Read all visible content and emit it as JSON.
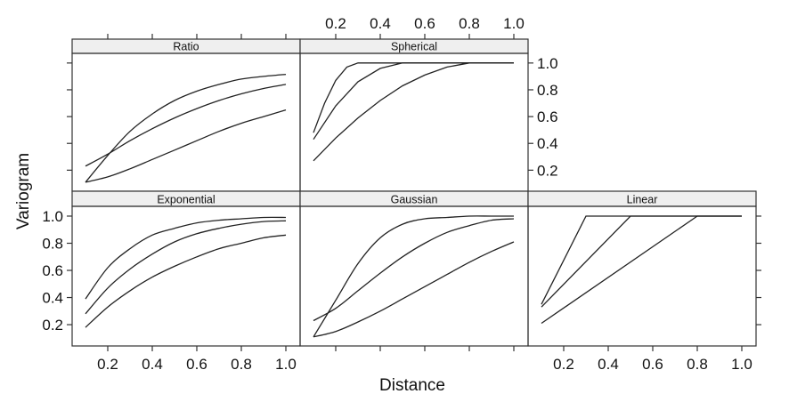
{
  "chart_data": {
    "type": "line",
    "xlabel": "Distance",
    "ylabel": "Variogram",
    "xlim": [
      0.04,
      1.064
    ],
    "ylim": [
      0.043,
      1.072
    ],
    "x_ticks": [
      "0.2",
      "0.4",
      "0.6",
      "0.8",
      "1.0"
    ],
    "y_ticks": [
      "0.2",
      "0.4",
      "0.6",
      "0.8",
      "1.0"
    ],
    "line_color": "#222222",
    "strip_color": "#efefef",
    "panels": [
      {
        "title": "Ratio",
        "row": 0,
        "col": 0,
        "smooth": true,
        "series": [
          {
            "x": [
              0.1,
              0.2,
              0.3,
              0.4,
              0.5,
              0.6,
              0.7,
              0.8,
              0.9,
              1.0
            ],
            "y": [
              0.11,
              0.31,
              0.49,
              0.62,
              0.72,
              0.79,
              0.84,
              0.88,
              0.9,
              0.915
            ]
          },
          {
            "x": [
              0.1,
              0.2,
              0.3,
              0.4,
              0.5,
              0.6,
              0.7,
              0.8,
              0.9,
              1.0
            ],
            "y": [
              0.23,
              0.32,
              0.42,
              0.51,
              0.59,
              0.66,
              0.72,
              0.77,
              0.81,
              0.84
            ]
          },
          {
            "x": [
              0.1,
              0.2,
              0.3,
              0.4,
              0.5,
              0.6,
              0.7,
              0.8,
              0.9,
              1.0
            ],
            "y": [
              0.11,
              0.15,
              0.21,
              0.28,
              0.35,
              0.42,
              0.49,
              0.55,
              0.6,
              0.65
            ]
          }
        ]
      },
      {
        "title": "Spherical",
        "row": 0,
        "col": 1,
        "smooth": false,
        "series": [
          {
            "x": [
              0.1,
              0.15,
              0.2,
              0.25,
              0.3,
              1.0
            ],
            "y": [
              0.48,
              0.7,
              0.87,
              0.97,
              1.0,
              1.0
            ]
          },
          {
            "x": [
              0.1,
              0.2,
              0.3,
              0.4,
              0.5,
              1.0
            ],
            "y": [
              0.43,
              0.68,
              0.86,
              0.96,
              1.0,
              1.0
            ]
          },
          {
            "x": [
              0.1,
              0.2,
              0.3,
              0.4,
              0.5,
              0.6,
              0.7,
              0.8,
              1.0
            ],
            "y": [
              0.27,
              0.44,
              0.59,
              0.72,
              0.83,
              0.91,
              0.97,
              1.0,
              1.0
            ]
          }
        ]
      },
      {
        "title": "Exponential",
        "row": 1,
        "col": 0,
        "smooth": true,
        "series": [
          {
            "x": [
              0.1,
              0.2,
              0.3,
              0.4,
              0.5,
              0.6,
              0.7,
              0.8,
              0.9,
              1.0
            ],
            "y": [
              0.39,
              0.62,
              0.76,
              0.86,
              0.91,
              0.95,
              0.97,
              0.98,
              0.99,
              0.99
            ]
          },
          {
            "x": [
              0.1,
              0.2,
              0.3,
              0.4,
              0.5,
              0.6,
              0.7,
              0.8,
              0.9,
              1.0
            ],
            "y": [
              0.28,
              0.47,
              0.61,
              0.72,
              0.81,
              0.87,
              0.91,
              0.94,
              0.96,
              0.965
            ]
          },
          {
            "x": [
              0.1,
              0.2,
              0.3,
              0.4,
              0.5,
              0.6,
              0.7,
              0.8,
              0.9,
              1.0
            ],
            "y": [
              0.18,
              0.33,
              0.45,
              0.55,
              0.63,
              0.7,
              0.76,
              0.8,
              0.84,
              0.86
            ]
          }
        ]
      },
      {
        "title": "Gaussian",
        "row": 1,
        "col": 1,
        "smooth": true,
        "series": [
          {
            "x": [
              0.1,
              0.2,
              0.3,
              0.4,
              0.5,
              0.6,
              0.7,
              0.8,
              0.9,
              1.0
            ],
            "y": [
              0.11,
              0.38,
              0.65,
              0.84,
              0.94,
              0.98,
              0.99,
              1.0,
              1.0,
              1.0
            ]
          },
          {
            "x": [
              0.1,
              0.2,
              0.3,
              0.4,
              0.5,
              0.6,
              0.7,
              0.8,
              0.9,
              1.0
            ],
            "y": [
              0.23,
              0.32,
              0.45,
              0.58,
              0.7,
              0.8,
              0.88,
              0.93,
              0.97,
              0.98
            ]
          },
          {
            "x": [
              0.1,
              0.2,
              0.3,
              0.4,
              0.5,
              0.6,
              0.7,
              0.8,
              0.9,
              1.0
            ],
            "y": [
              0.11,
              0.15,
              0.22,
              0.3,
              0.39,
              0.48,
              0.57,
              0.66,
              0.74,
              0.81
            ]
          }
        ]
      },
      {
        "title": "Linear",
        "row": 1,
        "col": 2,
        "smooth": false,
        "series": [
          {
            "x": [
              0.1,
              0.3,
              1.0
            ],
            "y": [
              0.35,
              1.0,
              1.0
            ]
          },
          {
            "x": [
              0.1,
              0.5,
              1.0
            ],
            "y": [
              0.33,
              1.0,
              1.0
            ]
          },
          {
            "x": [
              0.1,
              0.8,
              1.0
            ],
            "y": [
              0.21,
              1.0,
              1.0
            ]
          }
        ]
      }
    ]
  }
}
